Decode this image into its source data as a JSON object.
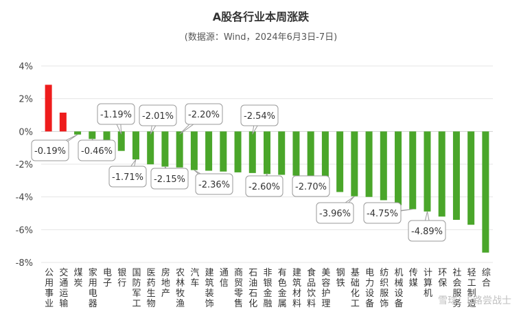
{
  "chart_data": {
    "type": "bar",
    "title": "A股各行业本周涨跌",
    "subtitle": "(数据源：Wind，2024年6月3日-7日)",
    "xlabel": "",
    "ylabel": "",
    "ylim": [
      -8,
      4
    ],
    "yticks": [
      "4%",
      "2%",
      "0%",
      "-2%",
      "-4%",
      "-6%",
      "-8%"
    ],
    "grid": true,
    "categories": [
      "公用事业",
      "交通运输",
      "煤炭",
      "家用电器",
      "电子",
      "银行",
      "国防军工",
      "医药生物",
      "房地产",
      "农林牧渔",
      "汽车",
      "建筑装饰",
      "通信",
      "商贸零售",
      "石油石化",
      "非银金融",
      "有色金属",
      "建筑材料",
      "食品饮料",
      "美容护理",
      "钢铁",
      "基础化工",
      "电力设备",
      "纺织服饰",
      "机械设备",
      "传媒",
      "计算机",
      "环保",
      "社会服务",
      "轻工制造",
      "综合"
    ],
    "values": [
      2.85,
      1.15,
      -0.19,
      -0.46,
      -0.55,
      -1.19,
      -1.71,
      -2.01,
      -2.15,
      -2.2,
      -2.36,
      -2.4,
      -2.45,
      -2.5,
      -2.54,
      -2.6,
      -2.65,
      -2.7,
      -2.75,
      -2.78,
      -3.7,
      -3.96,
      -4.0,
      -4.2,
      -4.5,
      -4.75,
      -4.89,
      -5.2,
      -5.4,
      -5.7,
      -7.4
    ],
    "colors": {
      "positive": "#ee1c1c",
      "negative": "#4aa62a"
    },
    "annotations": [
      {
        "text": "-0.19%",
        "index": 2
      },
      {
        "text": "-0.46%",
        "index": 3
      },
      {
        "text": "-1.19%",
        "index": 5
      },
      {
        "text": "-1.71%",
        "index": 6
      },
      {
        "text": "-2.01%",
        "index": 7
      },
      {
        "text": "-2.15%",
        "index": 8
      },
      {
        "text": "-2.20%",
        "index": 9
      },
      {
        "text": "-2.36%",
        "index": 10
      },
      {
        "text": "-2.54%",
        "index": 14
      },
      {
        "text": "-2.60%",
        "index": 15
      },
      {
        "text": "-2.70%",
        "index": 17
      },
      {
        "text": "-3.96%",
        "index": 21
      },
      {
        "text": "-4.75%",
        "index": 25
      },
      {
        "text": "-4.89%",
        "index": 26
      }
    ]
  },
  "watermark": "雪球：E路尝战士"
}
